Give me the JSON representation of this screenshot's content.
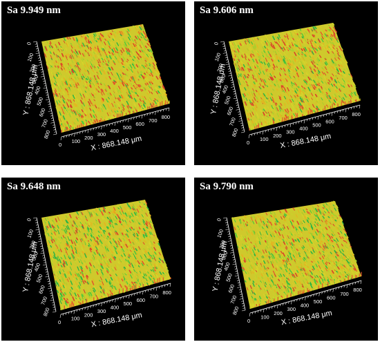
{
  "colors": {
    "background": "#000000",
    "text": "#ffffff",
    "surface_palette": [
      "#d7d42a",
      "#c9d32c",
      "#e7b21f",
      "#e3572b",
      "#d9412a",
      "#4fc93c",
      "#2bb544",
      "#a9cf2c"
    ]
  },
  "panels": [
    {
      "title": "Sa 9.949 nm",
      "x_axis": {
        "label": "X : 868.148 μm",
        "ticks": [
          "0",
          "100",
          "200",
          "300",
          "400",
          "500",
          "600",
          "700",
          "800"
        ]
      },
      "y_axis": {
        "label": "Y : 868.148 μm",
        "ticks": [
          "0",
          "100",
          "200",
          "300",
          "400",
          "500",
          "600",
          "700",
          "800"
        ]
      },
      "surface": {
        "red_fraction": 0.22,
        "green_fraction": 0.12
      }
    },
    {
      "title": "Sa 9.606 nm",
      "x_axis": {
        "label": "X : 868.148 μm",
        "ticks": [
          "0",
          "100",
          "200",
          "300",
          "400",
          "500",
          "600",
          "700",
          "800"
        ]
      },
      "y_axis": {
        "label": "Y : 868.148 μm",
        "ticks": [
          "0",
          "100",
          "200",
          "300",
          "400",
          "500",
          "600",
          "700",
          "800"
        ]
      },
      "surface": {
        "red_fraction": 0.2,
        "green_fraction": 0.12
      }
    },
    {
      "title": "Sa 9.648 nm",
      "x_axis": {
        "label": "X : 868.148 μm",
        "ticks": [
          "0",
          "100",
          "200",
          "300",
          "400",
          "500",
          "600",
          "700",
          "800"
        ]
      },
      "y_axis": {
        "label": "Y : 868.148 μm",
        "ticks": [
          "0",
          "100",
          "200",
          "300",
          "400",
          "500",
          "600",
          "700",
          "800"
        ]
      },
      "surface": {
        "red_fraction": 0.12,
        "green_fraction": 0.24
      }
    },
    {
      "title": "Sa 9.790 nm",
      "x_axis": {
        "label": "X : 868.148 μm",
        "ticks": [
          "0",
          "100",
          "200",
          "300",
          "400",
          "500",
          "600",
          "700",
          "800"
        ]
      },
      "y_axis": {
        "label": "Y : 868.148 μm",
        "ticks": [
          "0",
          "100",
          "200",
          "300",
          "400",
          "500",
          "600",
          "700",
          "800"
        ]
      },
      "surface": {
        "red_fraction": 0.14,
        "green_fraction": 0.2
      }
    }
  ]
}
